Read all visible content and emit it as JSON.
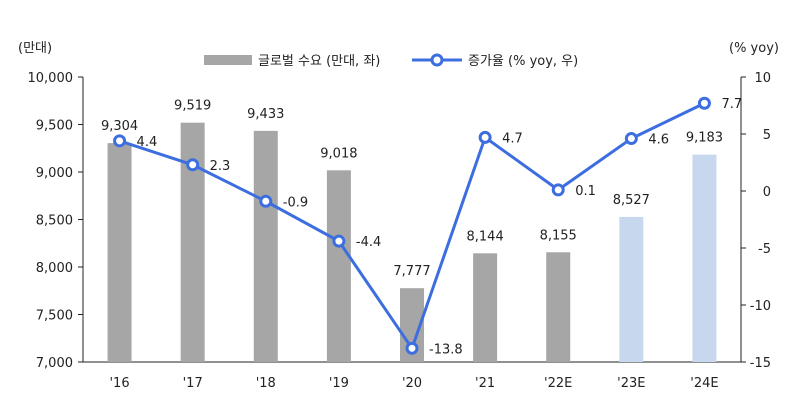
{
  "chart_data": {
    "type": "bar+line",
    "categories": [
      "'16",
      "'17",
      "'18",
      "'19",
      "'20",
      "'21",
      "'22E",
      "'23E",
      "'24E"
    ],
    "series": [
      {
        "name": "글로벌 수요 (만대, 좌)",
        "type": "bar",
        "axis": "left",
        "values": [
          9304,
          9519,
          9433,
          9018,
          7777,
          8144,
          8155,
          8527,
          9183
        ],
        "labels": [
          "9,304",
          "9,519",
          "9,433",
          "9,018",
          "7,777",
          "8,144",
          "8,155",
          "8,527",
          "9,183"
        ],
        "color": "#a6a6a6",
        "forecast_color": "#c6d7ee",
        "forecast_from_index": 7
      },
      {
        "name": "증가율 (% yoy, 우)",
        "type": "line",
        "axis": "right",
        "values": [
          4.4,
          2.3,
          -0.9,
          -4.4,
          -13.8,
          4.7,
          0.1,
          4.6,
          7.7
        ],
        "labels": [
          "4.4",
          "2.3",
          "-0.9",
          "-4.4",
          "-13.8",
          "4.7",
          "0.1",
          "4.6",
          "7.7"
        ],
        "color": "#3d6ee0"
      }
    ],
    "left_axis": {
      "unit": "(만대)",
      "ylim": [
        7000,
        10000
      ],
      "ticks": [
        "7,000",
        "7,500",
        "8,000",
        "8,500",
        "9,000",
        "9,500",
        "10,000"
      ],
      "tick_values": [
        7000,
        7500,
        8000,
        8500,
        9000,
        9500,
        10000
      ]
    },
    "right_axis": {
      "unit": "(% yoy)",
      "ylim": [
        -15,
        10
      ],
      "ticks": [
        "-15",
        "-10",
        "-5",
        "0",
        "5",
        "10"
      ],
      "tick_values": [
        -15,
        -10,
        -5,
        0,
        5,
        10
      ]
    },
    "legend_position": "top-center",
    "grid": false
  }
}
